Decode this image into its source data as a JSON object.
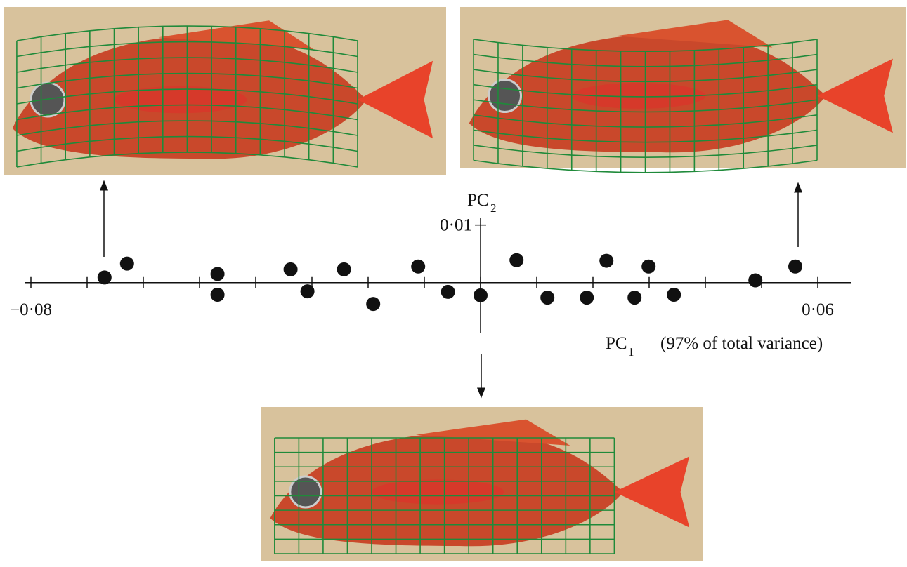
{
  "chart_data": {
    "type": "scatter",
    "x": [
      -0.0669,
      -0.0629,
      -0.0468,
      -0.0468,
      -0.0338,
      -0.0308,
      -0.0243,
      -0.0191,
      -0.0111,
      -0.0058,
      0.0,
      0.0064,
      0.0119,
      0.0189,
      0.0224,
      0.0274,
      0.0299,
      0.0344,
      0.0489,
      0.056
    ],
    "values": [
      0.0009,
      0.0033,
      0.0015,
      -0.0021,
      0.0023,
      -0.0015,
      0.0023,
      -0.0037,
      0.0028,
      -0.0016,
      -0.0022,
      0.0039,
      -0.0026,
      -0.0026,
      0.0038,
      -0.0026,
      0.0028,
      -0.0021,
      0.0004,
      0.0028
    ],
    "color": "#111111",
    "xlim": [
      -0.081,
      0.066
    ],
    "ylim": [
      -0.0088,
      0.0113
    ],
    "xticks": [
      {
        "value": -0.08,
        "label": "−0·08"
      },
      {
        "value": 0.06,
        "label": "0·06"
      }
    ],
    "minor_xticks": [
      -0.07,
      -0.06,
      -0.05,
      -0.04,
      -0.03,
      -0.02,
      -0.01,
      0.0,
      0.01,
      0.02,
      0.03,
      0.04,
      0.05
    ],
    "yticks": [
      {
        "value": 0.01,
        "label": "0·01"
      }
    ],
    "xlabel": "PC",
    "xlabel_subscript": "1",
    "xlabel_note": "(97% of total variance)",
    "ylabel": "PC",
    "ylabel_subscript": "2"
  }
}
